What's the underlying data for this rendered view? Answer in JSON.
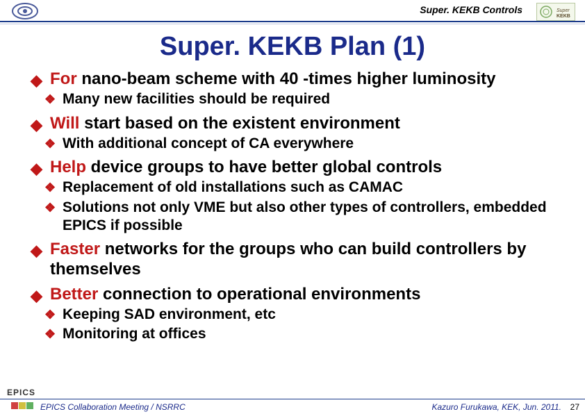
{
  "header": {
    "label": "Super. KEKB Controls"
  },
  "title": "Super. KEKB Plan (1)",
  "colors": {
    "accent_red": "#c01818",
    "title_blue": "#1a2a8a",
    "rule_blue": "#1a3a8a",
    "text_black": "#000000",
    "bg": "#ffffff"
  },
  "bullets": [
    {
      "level": 1,
      "lead": "For",
      "rest": " nano-beam scheme with 40 -times higher luminosity"
    },
    {
      "level": 2,
      "text": "Many new facilities should be required"
    },
    {
      "level": 1,
      "lead": "Will",
      "rest": " start based on the existent environment"
    },
    {
      "level": 2,
      "text": "With additional concept of CA everywhere"
    },
    {
      "level": 1,
      "lead": "Help",
      "rest": " device groups to have better global controls"
    },
    {
      "level": 2,
      "text": "Replacement of old installations such as CAMAC"
    },
    {
      "level": 2,
      "text": "Solutions not only VME but also other types of controllers, embedded EPICS if possible"
    },
    {
      "level": 1,
      "lead": "Faster",
      "rest": " networks for the groups who can build controllers by themselves"
    },
    {
      "level": 1,
      "lead": "Better",
      "rest": " connection to operational environments"
    },
    {
      "level": 2,
      "text": "Keeping SAD environment, etc"
    },
    {
      "level": 2,
      "text": "Monitoring at offices"
    }
  ],
  "footer": {
    "left": "EPICS Collaboration Meeting / NSRRC",
    "right": "Kazuro Furukawa, KEK, Jun. 2011.",
    "page": "27",
    "epics": "EPICS"
  },
  "corner_colors": [
    "#d04040",
    "#d0c040",
    "#60b060"
  ],
  "glyphs": {
    "diamond": "◆",
    "clover": "❖"
  }
}
